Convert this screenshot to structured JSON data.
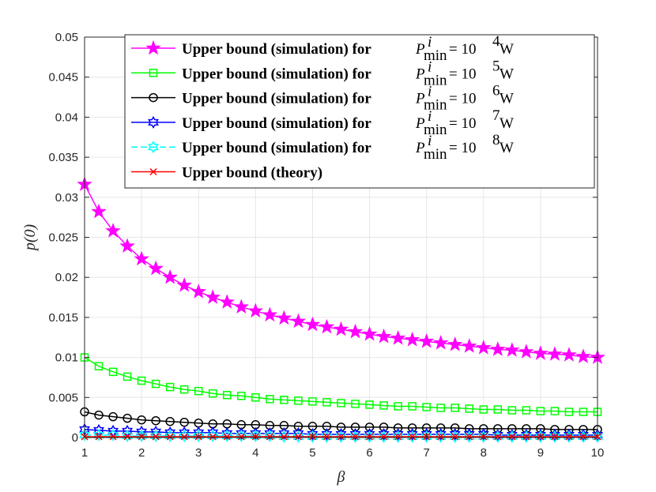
{
  "chart_data": {
    "type": "line",
    "xlabel": "β",
    "ylabel": "p(0)",
    "xlim": [
      1,
      10
    ],
    "ylim": [
      0,
      0.05
    ],
    "xticks": [
      "1",
      "2",
      "3",
      "4",
      "5",
      "6",
      "7",
      "8",
      "9",
      "10"
    ],
    "yticks": [
      "0",
      "0.005",
      "0.01",
      "0.015",
      "0.02",
      "0.025",
      "0.03",
      "0.035",
      "0.04",
      "0.045",
      "0.05"
    ],
    "grid": true,
    "legend_position": "top-right",
    "x_start": 1,
    "x_step": 0.25,
    "series": [
      {
        "name": "Upper bound (simulation) for P^i_min = 10^4 W",
        "legend_prefix": "Upper bound (simulation) for",
        "legend_math": {
          "P": "P",
          "sup": "i",
          "sub": "min",
          "eq": " = 10",
          "exp": "4",
          "unit": " W"
        },
        "color": "#ff00ff",
        "marker": "pentagram",
        "marker_fill": "#ff00ff",
        "values": [
          0.0316,
          0.0282,
          0.0258,
          0.0239,
          0.0223,
          0.0211,
          0.02,
          0.019,
          0.0182,
          0.0175,
          0.0169,
          0.0163,
          0.0158,
          0.0153,
          0.0149,
          0.0145,
          0.0141,
          0.0138,
          0.0135,
          0.0132,
          0.0129,
          0.0126,
          0.0124,
          0.0122,
          0.012,
          0.0118,
          0.0116,
          0.0114,
          0.0112,
          0.011,
          0.0109,
          0.0107,
          0.0105,
          0.0104,
          0.0103,
          0.0101,
          0.01
        ]
      },
      {
        "name": "Upper bound (simulation) for P^i_min = 10^5 W",
        "legend_prefix": "Upper bound (simulation) for",
        "legend_math": {
          "P": "P",
          "sup": "i",
          "sub": "min",
          "eq": " = 10",
          "exp": "5",
          "unit": " W"
        },
        "color": "#00ff00",
        "marker": "square",
        "marker_fill": "none",
        "values": [
          0.01,
          0.0089,
          0.0082,
          0.0076,
          0.0071,
          0.0067,
          0.0063,
          0.006,
          0.0058,
          0.0055,
          0.0053,
          0.0052,
          0.005,
          0.0048,
          0.0047,
          0.0046,
          0.0045,
          0.0044,
          0.0043,
          0.0042,
          0.0041,
          0.004,
          0.0039,
          0.0039,
          0.0038,
          0.0037,
          0.0037,
          0.0036,
          0.0035,
          0.0035,
          0.0034,
          0.0034,
          0.0033,
          0.0033,
          0.0032,
          0.0032,
          0.0032
        ]
      },
      {
        "name": "Upper bound (simulation) for P^i_min = 10^6 W",
        "legend_prefix": "Upper bound (simulation) for",
        "legend_math": {
          "P": "P",
          "sup": "i",
          "sub": "min",
          "eq": " = 10",
          "exp": "6",
          "unit": " W"
        },
        "color": "#000000",
        "marker": "circle",
        "marker_fill": "none",
        "values": [
          0.0032,
          0.0028,
          0.0026,
          0.0024,
          0.0022,
          0.0021,
          0.002,
          0.0019,
          0.0018,
          0.0017,
          0.0017,
          0.0016,
          0.0016,
          0.0015,
          0.0015,
          0.0014,
          0.0014,
          0.0014,
          0.0013,
          0.0013,
          0.0013,
          0.0013,
          0.0012,
          0.0012,
          0.0012,
          0.0012,
          0.0012,
          0.0011,
          0.0011,
          0.0011,
          0.0011,
          0.0011,
          0.0011,
          0.001,
          0.001,
          0.001,
          0.001
        ]
      },
      {
        "name": "Upper bound (simulation) for P^i_min = 10^7 W",
        "legend_prefix": "Upper bound (simulation) for",
        "legend_math": {
          "P": "P",
          "sup": "i",
          "sub": "min",
          "eq": " = 10",
          "exp": "7",
          "unit": " W"
        },
        "color": "#0000ff",
        "marker": "hexagram",
        "marker_fill": "none",
        "values": [
          0.001,
          0.0009,
          0.0008,
          0.0008,
          0.0007,
          0.0007,
          0.0006,
          0.0006,
          0.0006,
          0.0006,
          0.0005,
          0.0005,
          0.0005,
          0.0005,
          0.0005,
          0.0005,
          0.0004,
          0.0004,
          0.0004,
          0.0004,
          0.0004,
          0.0004,
          0.0004,
          0.0004,
          0.0004,
          0.0004,
          0.0004,
          0.0004,
          0.0004,
          0.0003,
          0.0003,
          0.0003,
          0.0003,
          0.0003,
          0.0003,
          0.0003,
          0.0003
        ]
      },
      {
        "name": "Upper bound (simulation) for P^i_min = 10^8 W",
        "legend_prefix": "Upper bound (simulation) for",
        "legend_math": {
          "P": "P",
          "sup": "i",
          "sub": "min",
          "eq": " = 10",
          "exp": "8",
          "unit": " W"
        },
        "color": "#00ffff",
        "marker": "hexagram",
        "marker_fill": "none",
        "dashed": true,
        "values": [
          0.0003,
          0.0003,
          0.0003,
          0.0002,
          0.0002,
          0.0002,
          0.0002,
          0.0002,
          0.0002,
          0.0002,
          0.0002,
          0.0002,
          0.0002,
          0.0002,
          0.0001,
          0.0001,
          0.0001,
          0.0001,
          0.0001,
          0.0001,
          0.0001,
          0.0001,
          0.0001,
          0.0001,
          0.0001,
          0.0001,
          0.0001,
          0.0001,
          0.0001,
          0.0001,
          0.0001,
          0.0001,
          0.0001,
          0.0001,
          0.0001,
          0.0001,
          0.0001
        ]
      },
      {
        "name": "Upper bound (theory)",
        "legend_prefix": "Upper bound (theory)",
        "color": "#ff0000",
        "marker": "x",
        "marker_fill": "none",
        "values": [
          0.0001,
          0.0001,
          0.0001,
          0.0001,
          0.0001,
          0.0001,
          0.0001,
          0.0001,
          0.0001,
          0.0001,
          0.0001,
          0.0001,
          0.0001,
          0.0001,
          0.0001,
          0.0001,
          0.0001,
          0.0001,
          0.0001,
          0.0001,
          0.0001,
          0.0001,
          0.0001,
          0.0001,
          0.0001,
          0.0001,
          0.0001,
          0.0001,
          0.0001,
          0.0001,
          0.0001,
          0.0001,
          0.0001,
          0.0001,
          0.0001,
          0.0001,
          0.0001
        ]
      }
    ]
  }
}
